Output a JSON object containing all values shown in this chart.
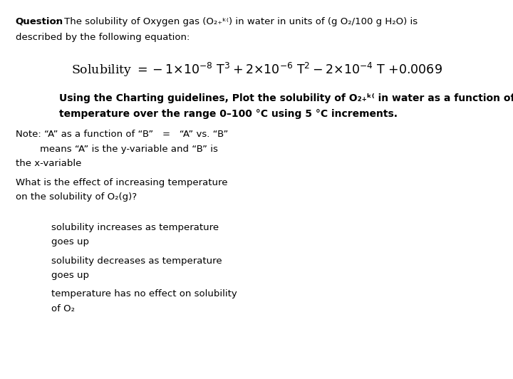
{
  "bg_color": "#ffffff",
  "text_color": "#000000",
  "figsize": [
    7.2,
    5.32
  ],
  "dpi": 100,
  "lm": 0.03,
  "indent1": 0.1,
  "fontsize_main": 9.5,
  "fontsize_eq": 12.5,
  "fontsize_inst": 10.0
}
